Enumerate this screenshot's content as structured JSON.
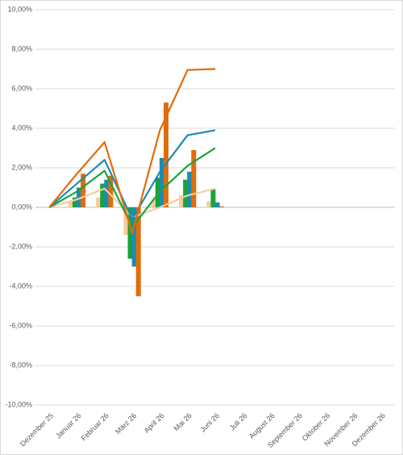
{
  "chart_data": {
    "type": "combo",
    "categories": [
      "Dezember 25",
      "Januar 26",
      "Februar 26",
      "März 26",
      "April 26",
      "Mai 26",
      "Juni 26",
      "Juli 26",
      "August 26",
      "September 26",
      "Oktober 26",
      "November 26",
      "Dezember 26"
    ],
    "series": [
      {
        "type": "bar",
        "color": "#f8cba0",
        "values": [
          0,
          0.3,
          0.5,
          -1.4,
          0.4,
          0.6,
          0.3,
          null,
          null,
          null,
          null,
          null,
          null
        ]
      },
      {
        "type": "bar",
        "color": "#1aa33a",
        "values": [
          0,
          0.5,
          1.2,
          -2.6,
          1.5,
          1.4,
          0.9,
          null,
          null,
          null,
          null,
          null,
          null
        ]
      },
      {
        "type": "bar",
        "color": "#1a8cb4",
        "values": [
          0,
          1.0,
          1.4,
          -3.0,
          2.5,
          1.8,
          0.25,
          null,
          null,
          null,
          null,
          null,
          null
        ]
      },
      {
        "type": "bar",
        "color": "#e06c0a",
        "values": [
          0,
          1.7,
          1.6,
          -4.5,
          5.3,
          2.9,
          0.05,
          null,
          null,
          null,
          null,
          null,
          null
        ]
      },
      {
        "type": "line",
        "color": "#f8cba0",
        "values": [
          0,
          0.4,
          0.95,
          -0.5,
          0,
          0.6,
          0.95,
          null,
          null,
          null,
          null,
          null,
          null
        ]
      },
      {
        "type": "line",
        "color": "#1aa33a",
        "values": [
          0,
          0.8,
          1.85,
          -1.0,
          0.8,
          2.1,
          3.0,
          null,
          null,
          null,
          null,
          null,
          null
        ]
      },
      {
        "type": "line",
        "color": "#1a8cb4",
        "values": [
          0,
          1.2,
          2.4,
          -0.6,
          1.8,
          3.65,
          3.9,
          null,
          null,
          null,
          null,
          null,
          null
        ]
      },
      {
        "type": "line",
        "color": "#e06c0a",
        "values": [
          0,
          1.7,
          3.3,
          -1.3,
          3.9,
          6.95,
          7.0,
          null,
          null,
          null,
          null,
          null,
          null
        ]
      }
    ],
    "ylim": [
      -10,
      10
    ],
    "yticks": [
      {
        "value": -10,
        "label": "-10,00%"
      },
      {
        "value": -8,
        "label": "-8,00%"
      },
      {
        "value": -6,
        "label": "-6,00%"
      },
      {
        "value": -4,
        "label": "-4,00%"
      },
      {
        "value": -2,
        "label": "-2,00%"
      },
      {
        "value": 0,
        "label": "0,00%"
      },
      {
        "value": 2,
        "label": "2,00%"
      },
      {
        "value": 4,
        "label": "4,00%"
      },
      {
        "value": 6,
        "label": "6,00%"
      },
      {
        "value": 8,
        "label": "8,00%"
      },
      {
        "value": 10,
        "label": "10,00%"
      }
    ],
    "grid": true
  }
}
